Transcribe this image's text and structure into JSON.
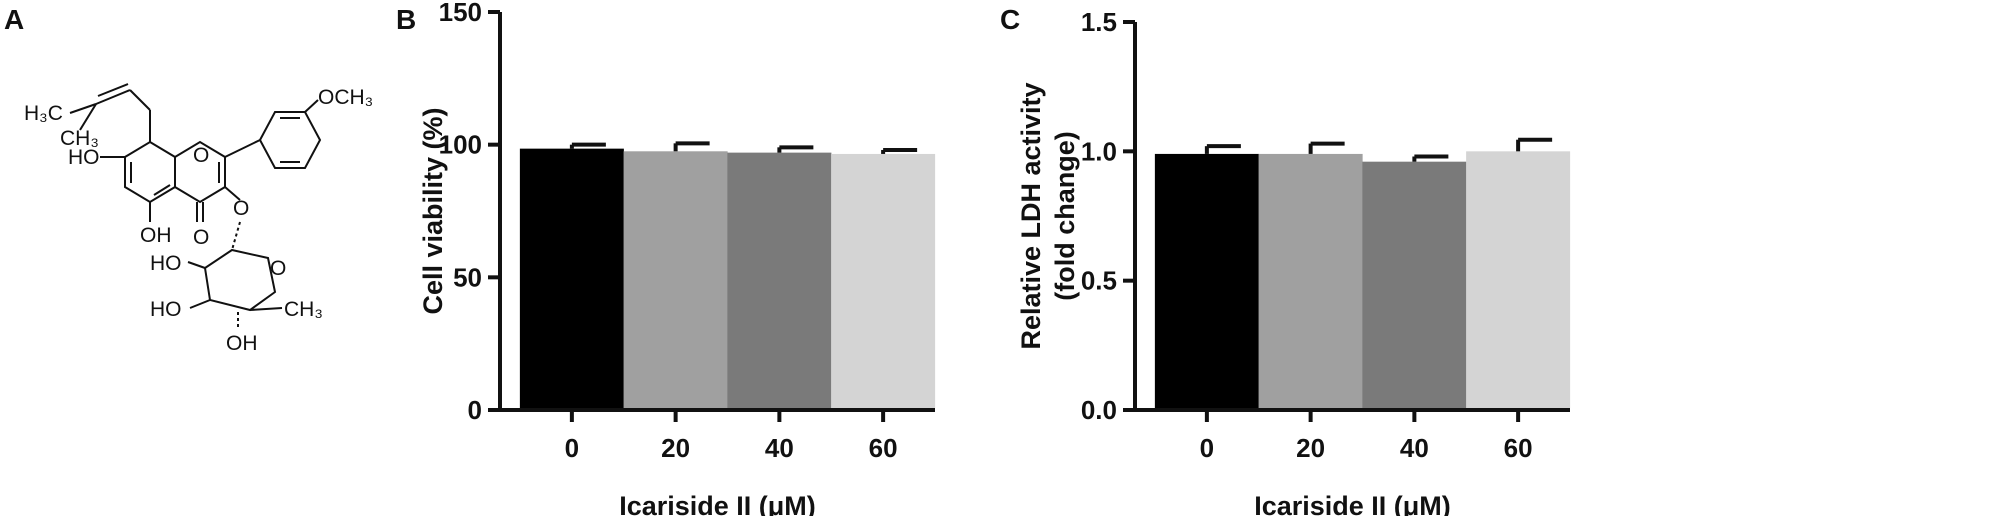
{
  "panels": {
    "a_label": "A",
    "b_label": "B",
    "c_label": "C"
  },
  "structure": {
    "labels": {
      "h3c": "H₃C",
      "ch3_top": "CH₃",
      "och3": "OCH₃",
      "ho_left": "HO",
      "o_ring": "O",
      "oh_bottom": "OH",
      "o_ketone": "O",
      "o_glyco": "O",
      "ho_sugar1": "HO",
      "o_sugar": "O",
      "ho_sugar2": "HO",
      "ch3_sugar": "CH₃",
      "oh_sugar": "OH"
    }
  },
  "chart_data": [
    {
      "panel": "B",
      "type": "bar",
      "categories": [
        "0",
        "20",
        "40",
        "60"
      ],
      "values": [
        98.5,
        97.5,
        97.0,
        96.5
      ],
      "errors": [
        1.5,
        3.0,
        2.0,
        1.5
      ],
      "colors": [
        "#000000",
        "#a0a0a0",
        "#7a7a7a",
        "#d4d4d4"
      ],
      "xlabel": "Icariside II (μM)",
      "ylabel": "Cell viability (%)",
      "ylim": [
        0,
        150
      ],
      "yticks": [
        "0",
        "50",
        "100",
        "150"
      ],
      "grid": false
    },
    {
      "panel": "C",
      "type": "bar",
      "categories": [
        "0",
        "20",
        "40",
        "60"
      ],
      "values": [
        0.99,
        0.99,
        0.96,
        1.0
      ],
      "errors": [
        0.03,
        0.04,
        0.02,
        0.045
      ],
      "colors": [
        "#000000",
        "#a0a0a0",
        "#7a7a7a",
        "#d4d4d4"
      ],
      "xlabel": "Icariside II (μM)",
      "ylabel_line1": "Relative LDH activity",
      "ylabel_line2": "(fold change)",
      "ylim": [
        0,
        1.5
      ],
      "yticks": [
        "0.0",
        "0.5",
        "1.0",
        "1.5"
      ],
      "grid": false
    }
  ]
}
